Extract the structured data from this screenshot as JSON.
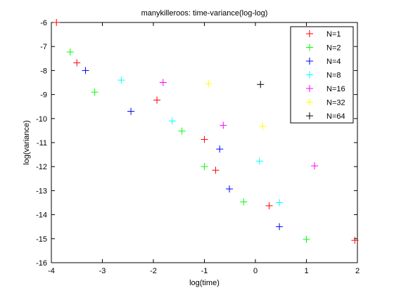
{
  "chart_data": {
    "type": "scatter",
    "title": "manykilleroos: time-variance(log-log)",
    "xlabel": "log(time)",
    "ylabel": "log(variance)",
    "xlim": [
      -4,
      2
    ],
    "ylim": [
      -16,
      -6
    ],
    "xticks": [
      "-4",
      "-3",
      "-2",
      "-1",
      "0",
      "1",
      "2"
    ],
    "yticks": [
      "-16",
      "-15",
      "-14",
      "-13",
      "-12",
      "-11",
      "-10",
      "-9",
      "-8",
      "-7",
      "-6"
    ],
    "xtick_values": [
      -4,
      -3,
      -2,
      -1,
      0,
      1,
      2
    ],
    "ytick_values": [
      -16,
      -15,
      -14,
      -13,
      -12,
      -11,
      -10,
      -9,
      -8,
      -7,
      -6
    ],
    "legend_position": "top-right",
    "marker": "+",
    "series": [
      {
        "name": "N=1",
        "color": "#ff0000",
        "points": [
          [
            -3.9,
            -6.0
          ],
          [
            -3.5,
            -7.68
          ],
          [
            -1.93,
            -9.23
          ],
          [
            -1.0,
            -10.87
          ],
          [
            -0.78,
            -12.15
          ],
          [
            0.27,
            -13.63
          ],
          [
            1.95,
            -15.07
          ]
        ]
      },
      {
        "name": "N=2",
        "color": "#00ff00",
        "points": [
          [
            -3.63,
            -7.23
          ],
          [
            -3.15,
            -8.9
          ],
          [
            -1.44,
            -10.52
          ],
          [
            -1.0,
            -12.0
          ],
          [
            -0.23,
            -13.47
          ],
          [
            1.0,
            -15.03
          ]
        ]
      },
      {
        "name": "N=4",
        "color": "#0000ff",
        "points": [
          [
            -3.33,
            -8.0
          ],
          [
            -2.44,
            -9.7
          ],
          [
            -0.7,
            -11.27
          ],
          [
            -0.51,
            -12.93
          ],
          [
            0.47,
            -14.5
          ]
        ]
      },
      {
        "name": "N=8",
        "color": "#00ffff",
        "points": [
          [
            -2.63,
            -8.4
          ],
          [
            -1.63,
            -10.1
          ],
          [
            0.08,
            -11.77
          ],
          [
            0.47,
            -13.5
          ]
        ]
      },
      {
        "name": "N=16",
        "color": "#ff00ff",
        "points": [
          [
            -1.81,
            -8.5
          ],
          [
            -0.63,
            -10.28
          ],
          [
            1.16,
            -11.97
          ]
        ]
      },
      {
        "name": "N=32",
        "color": "#ffff00",
        "points": [
          [
            -0.92,
            -8.55
          ],
          [
            0.14,
            -10.33
          ]
        ]
      },
      {
        "name": "N=64",
        "color": "#000000",
        "points": [
          [
            0.1,
            -8.58
          ]
        ]
      }
    ]
  }
}
